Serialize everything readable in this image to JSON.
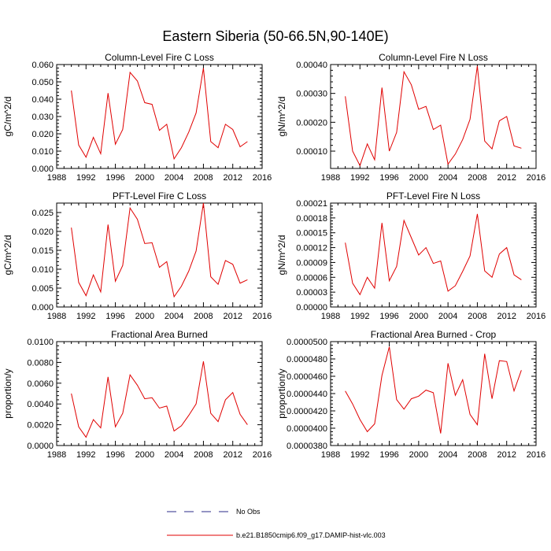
{
  "figure": {
    "title": "Eastern Siberia (50-66.5N,90-140E)"
  },
  "legend": {
    "entries": [
      {
        "label": "No Obs",
        "style": "dashed",
        "color": "#2b2b8a"
      },
      {
        "label": "b.e21.B1850cmip6.f09_g17.DAMIP-hist-vlc.003",
        "style": "solid",
        "color": "#e00000"
      }
    ]
  },
  "colors": {
    "series": "#e00000",
    "axis": "#000000"
  },
  "chart_data": [
    {
      "type": "line",
      "title": "Column-Level Fire C Loss",
      "ylabel": "gC/m^2/d",
      "xlim": [
        1988,
        2016
      ],
      "xticks": [
        "1988",
        "1992",
        "1996",
        "2000",
        "2004",
        "2008",
        "2012",
        "2016"
      ],
      "ylim": [
        0,
        0.06
      ],
      "yticks": [
        "0.000",
        "0.010",
        "0.020",
        "0.030",
        "0.040",
        "0.050",
        "0.060"
      ],
      "x": [
        1990,
        1991,
        1992,
        1993,
        1994,
        1995,
        1996,
        1997,
        1998,
        1999,
        2000,
        2001,
        2002,
        2003,
        2004,
        2005,
        2006,
        2007,
        2008,
        2009,
        2010,
        2011,
        2012,
        2013,
        2014
      ],
      "series": [
        {
          "values": [
            0.045,
            0.0135,
            0.0065,
            0.018,
            0.0085,
            0.0435,
            0.014,
            0.0225,
            0.0555,
            0.0505,
            0.038,
            0.037,
            0.022,
            0.0255,
            0.0055,
            0.012,
            0.021,
            0.032,
            0.058,
            0.0155,
            0.012,
            0.0255,
            0.0225,
            0.0125,
            0.0155
          ]
        }
      ]
    },
    {
      "type": "line",
      "title": "Column-Level Fire N Loss",
      "ylabel": "gN/m^2/d",
      "xlim": [
        1988,
        2016
      ],
      "xticks": [
        "1988",
        "1992",
        "1996",
        "2000",
        "2004",
        "2008",
        "2012",
        "2016"
      ],
      "ylim": [
        4e-05,
        0.0004
      ],
      "yticks": [
        "0.00010",
        "0.00020",
        "0.00030",
        "0.00040"
      ],
      "ytickvals": [
        0.0001,
        0.0002,
        0.0003,
        0.0004
      ],
      "x": [
        1990,
        1991,
        1992,
        1993,
        1994,
        1995,
        1996,
        1997,
        1998,
        1999,
        2000,
        2001,
        2002,
        2003,
        2004,
        2005,
        2006,
        2007,
        2008,
        2009,
        2010,
        2011,
        2012,
        2013,
        2014
      ],
      "series": [
        {
          "values": [
            0.00029,
            0.0001,
            5e-05,
            0.000125,
            7e-05,
            0.00032,
            0.0001,
            0.000165,
            0.000375,
            0.00033,
            0.000245,
            0.000255,
            0.000175,
            0.00019,
            5.5e-05,
            9e-05,
            0.00014,
            0.00021,
            0.000395,
            0.000135,
            0.000108,
            0.000205,
            0.00022,
            0.000118,
            0.00011
          ]
        }
      ]
    },
    {
      "type": "line",
      "title": "PFT-Level Fire C Loss",
      "ylabel": "gC/m^2/d",
      "xlim": [
        1988,
        2016
      ],
      "xticks": [
        "1988",
        "1992",
        "1996",
        "2000",
        "2004",
        "2008",
        "2012",
        "2016"
      ],
      "ylim": [
        0,
        0.0275
      ],
      "yticks": [
        "0.000",
        "0.005",
        "0.010",
        "0.015",
        "0.020",
        "0.025"
      ],
      "ytickvals": [
        0,
        0.005,
        0.01,
        0.015,
        0.02,
        0.025
      ],
      "x": [
        1990,
        1991,
        1992,
        1993,
        1994,
        1995,
        1996,
        1997,
        1998,
        1999,
        2000,
        2001,
        2002,
        2003,
        2004,
        2005,
        2006,
        2007,
        2008,
        2009,
        2010,
        2011,
        2012,
        2013,
        2014
      ],
      "series": [
        {
          "values": [
            0.021,
            0.0065,
            0.003,
            0.0085,
            0.004,
            0.0218,
            0.0068,
            0.011,
            0.0262,
            0.0232,
            0.0168,
            0.017,
            0.0105,
            0.012,
            0.0027,
            0.0055,
            0.0095,
            0.0148,
            0.0275,
            0.008,
            0.006,
            0.0123,
            0.0113,
            0.0063,
            0.0072
          ]
        }
      ]
    },
    {
      "type": "line",
      "title": "PFT-Level Fire N Loss",
      "ylabel": "gN/m^2/d",
      "xlim": [
        1988,
        2016
      ],
      "xticks": [
        "1988",
        "1992",
        "1996",
        "2000",
        "2004",
        "2008",
        "2012",
        "2016"
      ],
      "ylim": [
        0,
        0.00021
      ],
      "yticks": [
        "0.00000",
        "0.00003",
        "0.00006",
        "0.00009",
        "0.00012",
        "0.00015",
        "0.00018",
        "0.00021"
      ],
      "ytickvals": [
        0,
        3e-05,
        6e-05,
        9e-05,
        0.00012,
        0.00015,
        0.00018,
        0.00021
      ],
      "x": [
        1990,
        1991,
        1992,
        1993,
        1994,
        1995,
        1996,
        1997,
        1998,
        1999,
        2000,
        2001,
        2002,
        2003,
        2004,
        2005,
        2006,
        2007,
        2008,
        2009,
        2010,
        2011,
        2012,
        2013,
        2014
      ],
      "series": [
        {
          "values": [
            0.00013,
            4.8e-05,
            2.5e-05,
            6e-05,
            3.8e-05,
            0.00017,
            5.3e-05,
            8.2e-05,
            0.000175,
            0.00014,
            0.000105,
            0.00012,
            8.8e-05,
            9.3e-05,
            3.2e-05,
            4.3e-05,
            7.2e-05,
            0.000103,
            0.000188,
            7.3e-05,
            6e-05,
            0.000107,
            0.00012,
            6.5e-05,
            5.5e-05
          ]
        }
      ]
    },
    {
      "type": "line",
      "title": "Fractional Area Burned",
      "ylabel": "proportion/y",
      "xlim": [
        1988,
        2016
      ],
      "xticks": [
        "1988",
        "1992",
        "1996",
        "2000",
        "2004",
        "2008",
        "2012",
        "2016"
      ],
      "ylim": [
        0,
        0.01
      ],
      "yticks": [
        "0.0000",
        "0.0020",
        "0.0040",
        "0.0060",
        "0.0080",
        "0.0100"
      ],
      "ytickvals": [
        0,
        0.002,
        0.004,
        0.006,
        0.008,
        0.01
      ],
      "x": [
        1990,
        1991,
        1992,
        1993,
        1994,
        1995,
        1996,
        1997,
        1998,
        1999,
        2000,
        2001,
        2002,
        2003,
        2004,
        2005,
        2006,
        2007,
        2008,
        2009,
        2010,
        2011,
        2012,
        2013,
        2014
      ],
      "series": [
        {
          "values": [
            0.005,
            0.0018,
            0.0008,
            0.0025,
            0.0017,
            0.0066,
            0.0018,
            0.0031,
            0.0068,
            0.0058,
            0.0045,
            0.0046,
            0.0036,
            0.0038,
            0.0014,
            0.0019,
            0.0029,
            0.004,
            0.0081,
            0.0031,
            0.0023,
            0.0044,
            0.0051,
            0.003,
            0.002
          ]
        }
      ]
    },
    {
      "type": "line",
      "title": "Fractional Area Burned - Crop",
      "ylabel": "proportion/y",
      "xlim": [
        1988,
        2016
      ],
      "xticks": [
        "1988",
        "1992",
        "1996",
        "2000",
        "2004",
        "2008",
        "2012",
        "2016"
      ],
      "ylim": [
        3.8e-05,
        5e-05
      ],
      "yticks": [
        "0.0000380",
        "0.0000400",
        "0.0000420",
        "0.0000440",
        "0.0000460",
        "0.0000480",
        "0.0000500"
      ],
      "ytickvals": [
        3.8e-05,
        4e-05,
        4.2e-05,
        4.4e-05,
        4.6e-05,
        4.8e-05,
        5e-05
      ],
      "x": [
        1990,
        1991,
        1992,
        1993,
        1994,
        1995,
        1996,
        1997,
        1998,
        1999,
        2000,
        2001,
        2002,
        2003,
        2004,
        2005,
        2006,
        2007,
        2008,
        2009,
        2010,
        2011,
        2012,
        2013,
        2014
      ],
      "series": [
        {
          "values": [
            4.43e-05,
            4.28e-05,
            4.1e-05,
            3.96e-05,
            4.05e-05,
            4.61e-05,
            4.94e-05,
            4.33e-05,
            4.22e-05,
            4.34e-05,
            4.37e-05,
            4.44e-05,
            4.41e-05,
            3.94e-05,
            4.75e-05,
            4.38e-05,
            4.56e-05,
            4.16e-05,
            4.04e-05,
            4.86e-05,
            4.34e-05,
            4.78e-05,
            4.77e-05,
            4.43e-05,
            4.67e-05
          ]
        }
      ]
    }
  ]
}
